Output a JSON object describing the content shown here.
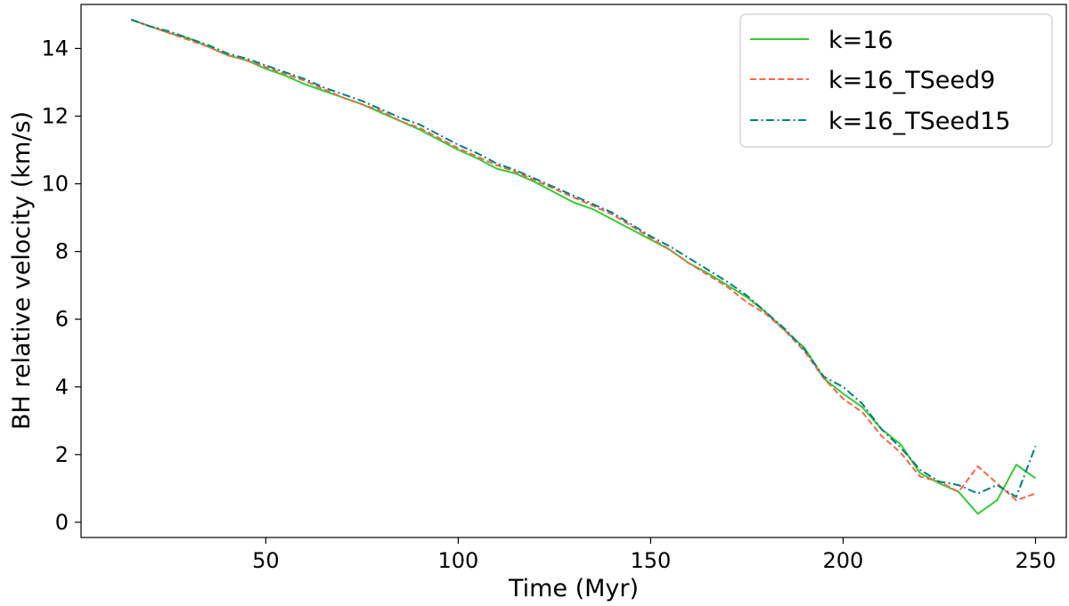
{
  "chart_data": {
    "type": "line",
    "xlabel": "Time (Myr)",
    "ylabel": "BH relative velocity (km/s)",
    "xlim": [
      2,
      258
    ],
    "ylim": [
      -0.45,
      15.3
    ],
    "xticks": [
      50,
      100,
      150,
      200,
      250
    ],
    "yticks": [
      0,
      2,
      4,
      6,
      8,
      10,
      12,
      14
    ],
    "grid": false,
    "legend_position": "top-right",
    "series": [
      {
        "name": "k=16",
        "color": "#33cc33",
        "dash": "solid",
        "x": [
          15,
          20,
          25,
          30,
          35,
          40,
          45,
          50,
          55,
          60,
          65,
          70,
          75,
          80,
          85,
          90,
          95,
          100,
          105,
          110,
          115,
          120,
          125,
          130,
          135,
          140,
          145,
          150,
          155,
          160,
          165,
          170,
          175,
          180,
          185,
          190,
          195,
          200,
          205,
          210,
          215,
          220,
          225,
          230,
          235,
          240,
          245,
          250
        ],
        "values": [
          14.85,
          14.65,
          14.45,
          14.3,
          14.05,
          13.8,
          13.65,
          13.4,
          13.2,
          12.95,
          12.75,
          12.55,
          12.35,
          12.1,
          11.85,
          11.6,
          11.3,
          11.0,
          10.75,
          10.45,
          10.3,
          10.05,
          9.75,
          9.45,
          9.25,
          8.95,
          8.65,
          8.35,
          8.05,
          7.65,
          7.35,
          7.0,
          6.65,
          6.2,
          5.65,
          5.15,
          4.25,
          3.8,
          3.4,
          2.75,
          2.3,
          1.45,
          1.15,
          0.9,
          0.25,
          0.65,
          1.7,
          1.3
        ]
      },
      {
        "name": "k=16_TSeed9",
        "color": "#ff6347",
        "dash": "dashed",
        "x": [
          15,
          20,
          25,
          30,
          35,
          40,
          45,
          50,
          55,
          60,
          65,
          70,
          75,
          80,
          85,
          90,
          95,
          100,
          105,
          110,
          115,
          120,
          125,
          130,
          135,
          140,
          145,
          150,
          155,
          160,
          165,
          170,
          175,
          180,
          185,
          190,
          195,
          200,
          205,
          210,
          215,
          220,
          225,
          230,
          235,
          240,
          245,
          250
        ],
        "values": [
          14.85,
          14.65,
          14.45,
          14.25,
          14.05,
          13.8,
          13.65,
          13.45,
          13.25,
          13.05,
          12.8,
          12.55,
          12.35,
          12.15,
          11.85,
          11.65,
          11.35,
          11.05,
          10.8,
          10.55,
          10.35,
          10.1,
          9.85,
          9.6,
          9.35,
          9.1,
          8.75,
          8.4,
          8.05,
          7.65,
          7.3,
          6.95,
          6.5,
          6.15,
          5.65,
          5.05,
          4.25,
          3.65,
          3.25,
          2.55,
          2.05,
          1.35,
          1.2,
          0.9,
          1.65,
          1.15,
          0.65,
          0.85
        ]
      },
      {
        "name": "k=16_TSeed15",
        "color": "#008080",
        "dash": "dashdot",
        "x": [
          15,
          20,
          25,
          30,
          35,
          40,
          45,
          50,
          55,
          60,
          65,
          70,
          75,
          80,
          85,
          90,
          95,
          100,
          105,
          110,
          115,
          120,
          125,
          130,
          135,
          140,
          145,
          150,
          155,
          160,
          165,
          170,
          175,
          180,
          185,
          190,
          195,
          200,
          205,
          210,
          215,
          220,
          225,
          230,
          235,
          240,
          245,
          250
        ],
        "values": [
          14.85,
          14.65,
          14.5,
          14.3,
          14.1,
          13.85,
          13.7,
          13.5,
          13.3,
          13.1,
          12.85,
          12.65,
          12.45,
          12.2,
          11.95,
          11.75,
          11.45,
          11.15,
          10.9,
          10.6,
          10.4,
          10.15,
          9.9,
          9.65,
          9.4,
          9.15,
          8.8,
          8.45,
          8.15,
          7.8,
          7.45,
          7.1,
          6.7,
          6.2,
          5.7,
          5.1,
          4.3,
          4.0,
          3.5,
          2.75,
          2.2,
          1.55,
          1.2,
          1.1,
          0.85,
          1.1,
          0.75,
          2.25
        ]
      }
    ]
  }
}
